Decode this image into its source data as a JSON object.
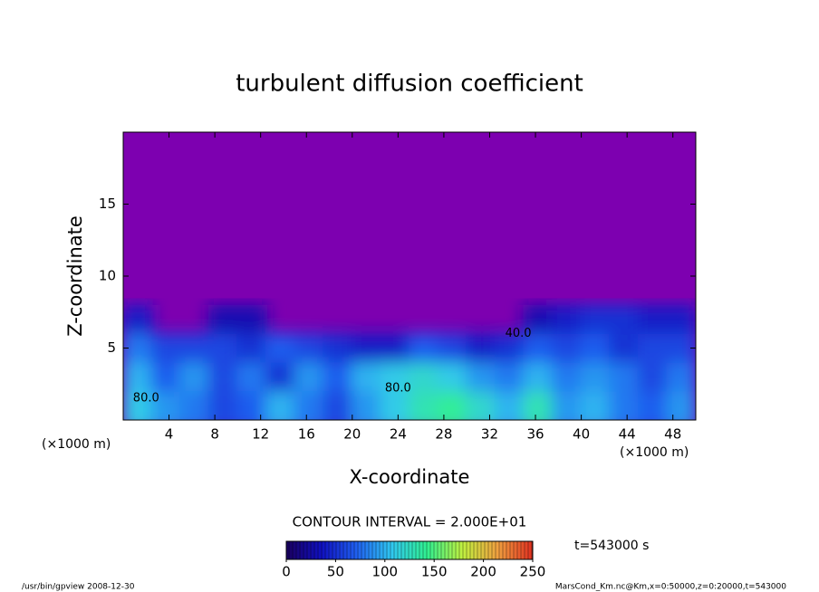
{
  "chart_data": {
    "type": "heatmap",
    "title": "turbulent diffusion coefficient",
    "x_label": "X-coordinate",
    "y_label": "Z-coordinate",
    "x_unit": "(×1000 m)",
    "xlim": [
      0,
      50
    ],
    "xticks": [
      4,
      8,
      12,
      16,
      20,
      24,
      28,
      32,
      36,
      40,
      44,
      48
    ],
    "ylim": [
      0,
      20
    ],
    "yticks": [
      5,
      10,
      15
    ],
    "xbins": [
      0,
      2.5,
      5,
      7.5,
      10,
      12.5,
      15,
      17.5,
      20,
      22.5,
      25,
      27.5,
      30,
      32.5,
      35,
      37.5,
      40,
      42.5,
      45,
      47.5,
      50
    ],
    "ybins": [
      0,
      2,
      4,
      6,
      8
    ],
    "values": [
      [
        110,
        90,
        80,
        60,
        70,
        100,
        80,
        60,
        90,
        110,
        130,
        140,
        120,
        100,
        130,
        90,
        100,
        80,
        70,
        90
      ],
      [
        100,
        70,
        90,
        60,
        80,
        50,
        90,
        70,
        100,
        110,
        120,
        110,
        90,
        80,
        100,
        80,
        90,
        80,
        60,
        80
      ],
      [
        80,
        60,
        60,
        60,
        50,
        70,
        60,
        50,
        40,
        40,
        70,
        60,
        40,
        50,
        70,
        60,
        70,
        50,
        60,
        60
      ],
      [
        40,
        null,
        null,
        30,
        30,
        null,
        null,
        null,
        null,
        null,
        null,
        null,
        null,
        null,
        30,
        40,
        50,
        50,
        40,
        40
      ]
    ],
    "background_color": "#7d00b0",
    "colormap": [
      "#1a0060",
      "#1010c0",
      "#2060f0",
      "#30c8f0",
      "#30f090",
      "#c0f040",
      "#f0a040",
      "#e03020"
    ],
    "clim": [
      0,
      250
    ],
    "cticks": [
      0,
      50,
      100,
      150,
      200,
      250
    ],
    "contour_interval": "CONTOUR INTERVAL = 2.000E+01",
    "contour_labels": [
      {
        "text": "80.0",
        "x": 24,
        "y": 2.2
      },
      {
        "text": "40.0",
        "x": 34.5,
        "y": 6
      },
      {
        "text": "80.0",
        "x": 2,
        "y": 1.5
      }
    ],
    "time_label": "t=543000 s",
    "footer_left": "/usr/bin/gpview  2008-12-30",
    "footer_right": "MarsCond_Km.nc@Km,x=0:50000,z=0:20000,t=543000"
  }
}
